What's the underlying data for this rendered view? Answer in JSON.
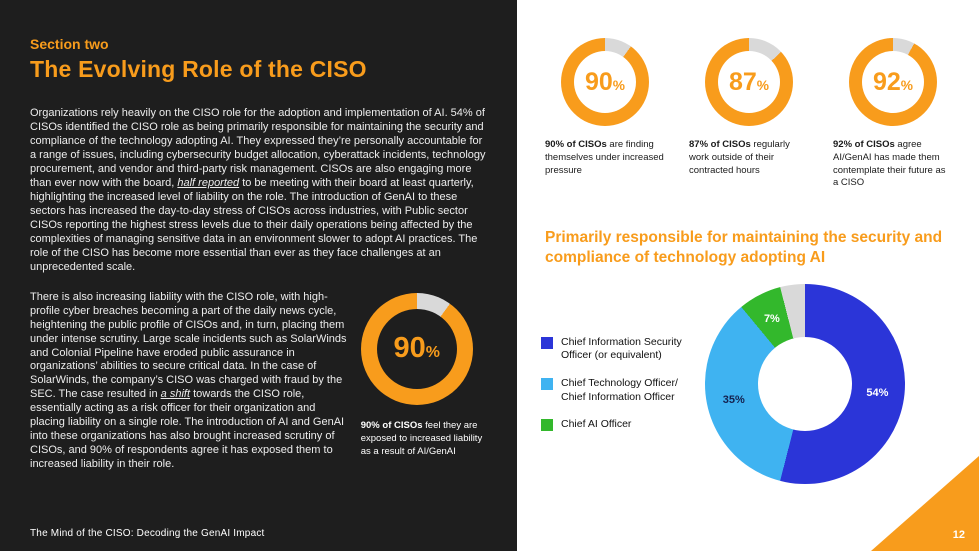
{
  "colors": {
    "orange": "#F89C1C",
    "dark_bg": "#1E1E1E",
    "donut_track": "#D9D9D9",
    "pie_hole": "#FFFFFF"
  },
  "footer": "The Mind of the CISO: Decoding the GenAI Impact",
  "page_number": "12",
  "left_panel": {
    "section_label": "Section two",
    "title": "The Evolving Role of the CISO",
    "para1": {
      "a": "Organizations rely heavily on the CISO role for the adoption and implementation of AI. 54% of CISOs identified the CISO role as being primarily responsible for maintaining the security and compliance of the technology adopting AI. They expressed they’re personally accountable for a range of issues, including cybersecurity budget allocation, cyberattack incidents, technology procurement, and vendor and third-party risk management. CISOs are also engaging more than ever now with the board, ",
      "em": "half reported",
      "b": " to be meeting with their board at least quarterly, highlighting the increased level of liability on the role. The introduction of GenAI to these sectors has increased the day-to-day stress of CISOs across industries, with Public sector CISOs reporting the highest stress levels due to their daily operations being affected by the complexities of managing sensitive data in an environment slower to adopt AI practices. The role of the CISO has become more essential than ever as they face challenges at an unprecedented scale."
    },
    "para2": {
      "a": "There is also increasing liability with the CISO role, with high-profile cyber breaches becoming a part of the daily news cycle, heightening the public profile of CISOs and, in turn, placing them under intense scrutiny. Large scale incidents such as SolarWinds and Colonial Pipeline have eroded public assurance in organizations’ abilities to secure critical data. In the case of SolarWinds, the company’s CISO was charged with fraud by the SEC. The case resulted in ",
      "em": "a shift",
      "b": " towards the CISO role, essentially acting as a risk officer for their organization and placing liability on a single role. The introduction of AI and GenAI into these organizations has also brought increased scrutiny of CISOs, and 90% of respondents agree it has exposed them to increased liability in their role."
    },
    "liability_stat": {
      "value": "90",
      "suffix": "%",
      "pct": 90,
      "caption_bold": "90% of CISOs",
      "caption_rest": " feel they are exposed to increased liability as a result of AI/GenAI"
    }
  },
  "stats": [
    {
      "value": "90",
      "suffix": "%",
      "pct": 90,
      "caption_bold": "90% of CISOs",
      "caption_rest": " are finding themselves under increased pressure"
    },
    {
      "value": "87",
      "suffix": "%",
      "pct": 87,
      "caption_bold": "87% of CISOs",
      "caption_rest": " regularly work outside of their contracted hours"
    },
    {
      "value": "92",
      "suffix": "%",
      "pct": 92,
      "caption_bold": "92% of CISOs",
      "caption_rest": " agree AI/GenAI has made them contemplate their future as a CISO"
    }
  ],
  "right_panel": {
    "heading": "Primarily responsible for maintaining the security and compliance of technology adopting AI"
  },
  "chart_data": {
    "type": "pie",
    "title": "Primarily responsible for maintaining the security and compliance of technology adopting AI",
    "donut_hole": true,
    "legend_position": "left",
    "slices": [
      {
        "label": "Chief Information Security Officer (or equivalent)",
        "value": 54,
        "color": "#2B35D8",
        "pct_label": "54%",
        "pct_label_color": "#FFFFFF"
      },
      {
        "label": "Chief Technology Officer/ Chief Information Officer",
        "value": 35,
        "color": "#3FB3F1",
        "pct_label": "35%",
        "pct_label_color": "#14214E"
      },
      {
        "label": "Chief AI Officer",
        "value": 7,
        "color": "#33B82C",
        "pct_label": "7%",
        "pct_label_color": "#FFFFFF"
      },
      {
        "label": "",
        "value": 4,
        "color": "#D9D9D9",
        "pct_label": "",
        "pct_label_color": ""
      }
    ]
  }
}
